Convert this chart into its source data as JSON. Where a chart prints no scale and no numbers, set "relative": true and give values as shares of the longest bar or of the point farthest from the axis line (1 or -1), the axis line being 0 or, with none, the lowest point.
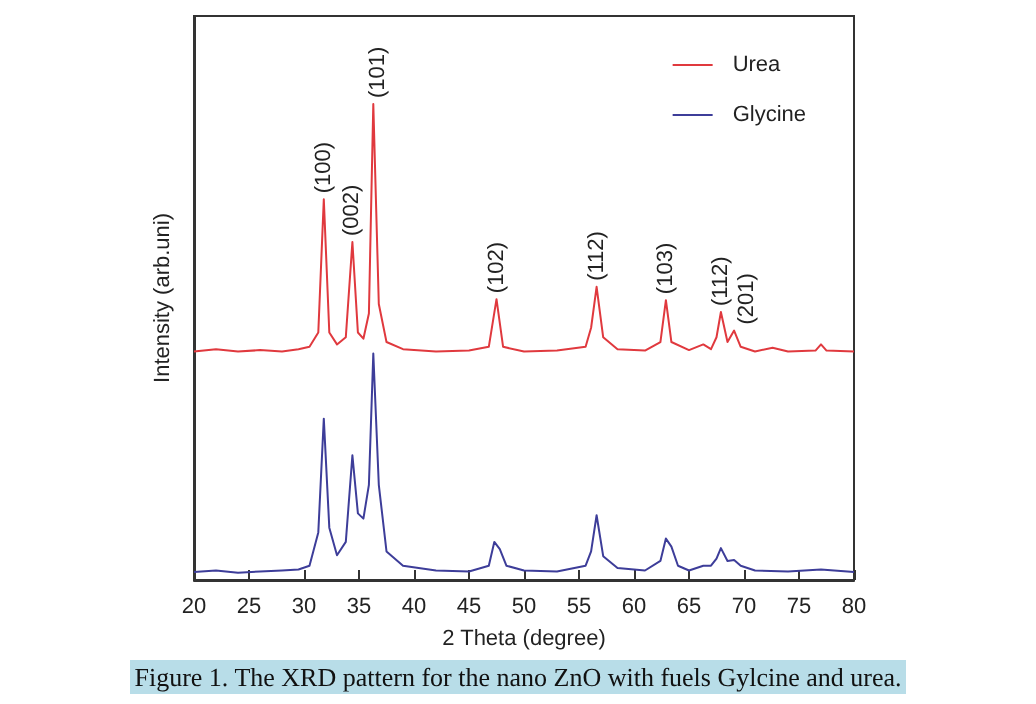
{
  "chart_data": {
    "type": "line",
    "relative": true,
    "xlabel": "2 Theta (degree)",
    "ylabel": "Intensity (arb.uni)",
    "xlim": [
      20,
      80
    ],
    "xticks": [
      20,
      25,
      30,
      35,
      40,
      45,
      50,
      55,
      60,
      65,
      70,
      75,
      80
    ],
    "tick_labels": "x",
    "grid": false,
    "legend": "top right",
    "series": [
      {
        "name": "Urea",
        "color": "#e0393e",
        "x": [
          20,
          22,
          24,
          26,
          28,
          29.5,
          30.5,
          31.3,
          31.8,
          32.3,
          33,
          33.8,
          34.4,
          34.9,
          35.4,
          35.9,
          36.3,
          36.8,
          37.5,
          39,
          42,
          45,
          46.8,
          47.5,
          48.1,
          50,
          53,
          55.6,
          56.1,
          56.6,
          57.2,
          58.5,
          61,
          62.4,
          62.9,
          63.4,
          65,
          66.3,
          67,
          67.5,
          67.9,
          68.5,
          69.1,
          69.7,
          71,
          72.6,
          74,
          76.5,
          77,
          77.5,
          80
        ],
        "values": [
          0.48,
          0.485,
          0.48,
          0.483,
          0.48,
          0.485,
          0.49,
          0.52,
          0.8,
          0.52,
          0.495,
          0.51,
          0.71,
          0.52,
          0.507,
          0.56,
          1.0,
          0.58,
          0.5,
          0.485,
          0.48,
          0.482,
          0.49,
          0.59,
          0.49,
          0.48,
          0.482,
          0.49,
          0.53,
          0.616,
          0.51,
          0.485,
          0.482,
          0.5,
          0.588,
          0.5,
          0.483,
          0.495,
          0.485,
          0.51,
          0.563,
          0.5,
          0.524,
          0.49,
          0.48,
          0.488,
          0.48,
          0.482,
          0.495,
          0.482,
          0.48
        ]
      },
      {
        "name": "Glycine",
        "color": "#3d3d99",
        "x": [
          20,
          22,
          24,
          26,
          28,
          29.5,
          30.5,
          31.3,
          31.8,
          32.3,
          33,
          33.8,
          34.4,
          34.9,
          35.4,
          35.9,
          36.3,
          36.8,
          37.5,
          39,
          42,
          45,
          46.8,
          47.3,
          47.8,
          48.4,
          50,
          53,
          55.6,
          56.1,
          56.6,
          57.2,
          58.5,
          61,
          62.4,
          62.9,
          63.4,
          64,
          65,
          66.3,
          67,
          67.5,
          67.9,
          68.5,
          69.1,
          69.7,
          71,
          74,
          77,
          80
        ],
        "values": [
          0.017,
          0.02,
          0.015,
          0.018,
          0.02,
          0.022,
          0.03,
          0.1,
          0.339,
          0.11,
          0.052,
          0.08,
          0.262,
          0.14,
          0.129,
          0.2,
          0.476,
          0.2,
          0.06,
          0.03,
          0.02,
          0.018,
          0.03,
          0.08,
          0.065,
          0.03,
          0.02,
          0.018,
          0.03,
          0.06,
          0.136,
          0.05,
          0.025,
          0.02,
          0.04,
          0.087,
          0.07,
          0.03,
          0.02,
          0.03,
          0.03,
          0.045,
          0.067,
          0.04,
          0.042,
          0.03,
          0.02,
          0.018,
          0.022,
          0.017
        ]
      }
    ],
    "annotations": [
      {
        "text": "(100)",
        "x": 31.8,
        "y": 0.8
      },
      {
        "text": "(002)",
        "x": 34.4,
        "y": 0.71
      },
      {
        "text": "(101)",
        "x": 36.3,
        "y": 1.0
      },
      {
        "text": "(102)",
        "x": 47.5,
        "y": 0.59
      },
      {
        "text": "(112)",
        "x": 56.6,
        "y": 0.616
      },
      {
        "text": "(103)",
        "x": 62.9,
        "y": 0.588
      },
      {
        "text": "(112)",
        "x": 67.9,
        "y": 0.563
      },
      {
        "text": "(201)",
        "x": 69.1,
        "y": 0.524
      },
      "Figure 1. The XRD pattern for the nano ZnO with fuels Gylcine and urea."
    ]
  }
}
